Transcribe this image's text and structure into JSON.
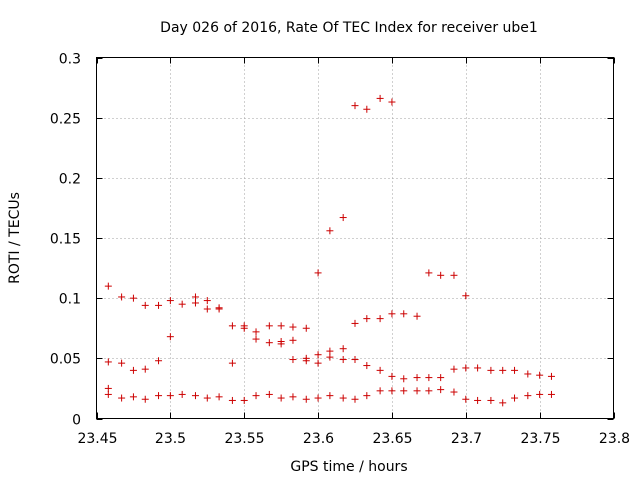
{
  "chart_data": {
    "type": "scatter",
    "title": "Day 026 of 2016, Rate Of TEC Index for receiver ube1",
    "xlabel": "GPS time / hours",
    "ylabel": "ROTI / TECUs",
    "xlim": [
      23.45,
      23.8
    ],
    "ylim": [
      0,
      0.3
    ],
    "xticks": [
      "23.45",
      "23.5",
      "23.55",
      "23.6",
      "23.65",
      "23.7",
      "23.75",
      "23.8"
    ],
    "yticks": [
      "0",
      "0.05",
      "0.1",
      "0.15",
      "0.2",
      "0.25",
      "0.3"
    ],
    "grid": true,
    "marker": "+",
    "marker_color": "#cc0000",
    "series": [
      {
        "name": "ROTI",
        "points": [
          [
            23.458,
            0.11
          ],
          [
            23.467,
            0.101
          ],
          [
            23.475,
            0.1
          ],
          [
            23.483,
            0.094
          ],
          [
            23.492,
            0.094
          ],
          [
            23.5,
            0.098
          ],
          [
            23.508,
            0.095
          ],
          [
            23.517,
            0.101
          ],
          [
            23.517,
            0.096
          ],
          [
            23.525,
            0.098
          ],
          [
            23.525,
            0.091
          ],
          [
            23.533,
            0.091
          ],
          [
            23.533,
            0.092
          ],
          [
            23.542,
            0.077
          ],
          [
            23.55,
            0.077
          ],
          [
            23.55,
            0.075
          ],
          [
            23.558,
            0.072
          ],
          [
            23.558,
            0.066
          ],
          [
            23.567,
            0.077
          ],
          [
            23.567,
            0.063
          ],
          [
            23.575,
            0.077
          ],
          [
            23.575,
            0.062
          ],
          [
            23.575,
            0.064
          ],
          [
            23.583,
            0.076
          ],
          [
            23.583,
            0.065
          ],
          [
            23.583,
            0.049
          ],
          [
            23.592,
            0.075
          ],
          [
            23.592,
            0.05
          ],
          [
            23.592,
            0.048
          ],
          [
            23.6,
            0.121
          ],
          [
            23.6,
            0.053
          ],
          [
            23.6,
            0.046
          ],
          [
            23.608,
            0.156
          ],
          [
            23.608,
            0.056
          ],
          [
            23.608,
            0.051
          ],
          [
            23.617,
            0.167
          ],
          [
            23.617,
            0.058
          ],
          [
            23.617,
            0.049
          ],
          [
            23.625,
            0.26
          ],
          [
            23.625,
            0.079
          ],
          [
            23.625,
            0.049
          ],
          [
            23.633,
            0.257
          ],
          [
            23.633,
            0.083
          ],
          [
            23.633,
            0.044
          ],
          [
            23.642,
            0.266
          ],
          [
            23.642,
            0.083
          ],
          [
            23.642,
            0.04
          ],
          [
            23.65,
            0.263
          ],
          [
            23.65,
            0.087
          ],
          [
            23.65,
            0.035
          ],
          [
            23.658,
            0.087
          ],
          [
            23.658,
            0.033
          ],
          [
            23.667,
            0.085
          ],
          [
            23.667,
            0.034
          ],
          [
            23.675,
            0.121
          ],
          [
            23.675,
            0.034
          ],
          [
            23.683,
            0.119
          ],
          [
            23.683,
            0.034
          ],
          [
            23.692,
            0.119
          ],
          [
            23.692,
            0.041
          ],
          [
            23.7,
            0.102
          ],
          [
            23.7,
            0.042
          ],
          [
            23.708,
            0.042
          ],
          [
            23.717,
            0.04
          ],
          [
            23.725,
            0.04
          ],
          [
            23.733,
            0.04
          ],
          [
            23.742,
            0.037
          ],
          [
            23.75,
            0.036
          ],
          [
            23.758,
            0.035
          ],
          [
            23.458,
            0.047
          ],
          [
            23.467,
            0.046
          ],
          [
            23.475,
            0.04
          ],
          [
            23.483,
            0.041
          ],
          [
            23.492,
            0.048
          ],
          [
            23.5,
            0.068
          ],
          [
            23.542,
            0.046
          ],
          [
            23.458,
            0.025
          ],
          [
            23.458,
            0.02
          ],
          [
            23.467,
            0.017
          ],
          [
            23.475,
            0.018
          ],
          [
            23.483,
            0.016
          ],
          [
            23.492,
            0.019
          ],
          [
            23.5,
            0.019
          ],
          [
            23.508,
            0.02
          ],
          [
            23.517,
            0.019
          ],
          [
            23.525,
            0.017
          ],
          [
            23.533,
            0.018
          ],
          [
            23.542,
            0.015
          ],
          [
            23.55,
            0.015
          ],
          [
            23.558,
            0.019
          ],
          [
            23.567,
            0.02
          ],
          [
            23.575,
            0.017
          ],
          [
            23.583,
            0.018
          ],
          [
            23.592,
            0.016
          ],
          [
            23.6,
            0.017
          ],
          [
            23.608,
            0.019
          ],
          [
            23.617,
            0.017
          ],
          [
            23.625,
            0.016
          ],
          [
            23.633,
            0.019
          ],
          [
            23.642,
            0.023
          ],
          [
            23.65,
            0.023
          ],
          [
            23.658,
            0.023
          ],
          [
            23.667,
            0.023
          ],
          [
            23.675,
            0.023
          ],
          [
            23.683,
            0.024
          ],
          [
            23.692,
            0.022
          ],
          [
            23.7,
            0.016
          ],
          [
            23.708,
            0.015
          ],
          [
            23.717,
            0.015
          ],
          [
            23.725,
            0.013
          ],
          [
            23.733,
            0.017
          ],
          [
            23.742,
            0.019
          ],
          [
            23.75,
            0.02
          ],
          [
            23.758,
            0.02
          ]
        ]
      }
    ]
  }
}
